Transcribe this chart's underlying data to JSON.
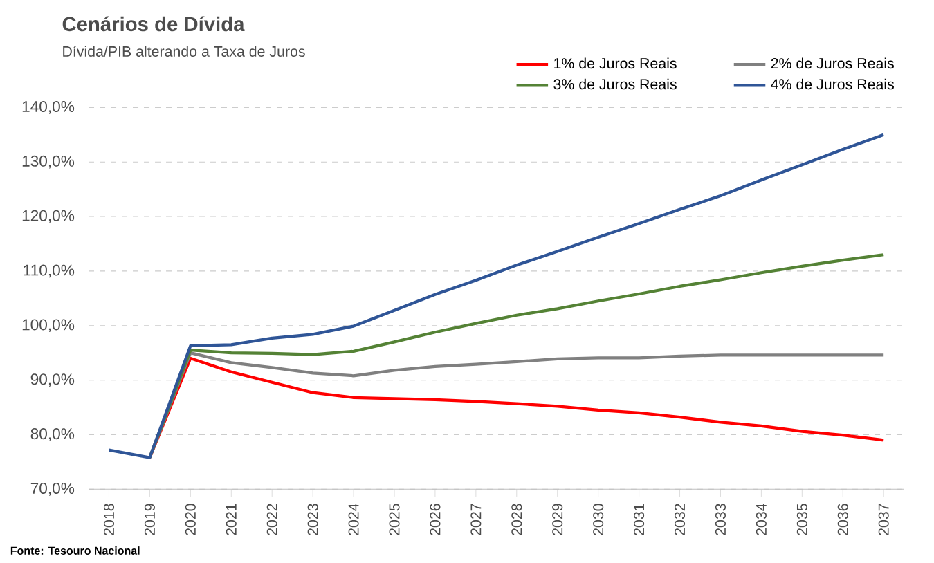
{
  "chart_data": {
    "type": "line",
    "title": "Cenários de Dívida",
    "subtitle": "Dívida/PIB alterando a Taxa de Juros",
    "categories": [
      "2018",
      "2019",
      "2020",
      "2021",
      "2022",
      "2023",
      "2024",
      "2025",
      "2026",
      "2027",
      "2028",
      "2029",
      "2030",
      "2031",
      "2032",
      "2033",
      "2034",
      "2035",
      "2036",
      "2037"
    ],
    "series": [
      {
        "name": "1% de Juros Reais",
        "color": "#ff0000",
        "values": [
          null,
          75.8,
          94.0,
          91.5,
          89.6,
          87.7,
          86.8,
          86.6,
          86.4,
          86.1,
          85.7,
          85.2,
          84.5,
          84.0,
          83.2,
          82.3,
          81.6,
          80.6,
          79.9,
          79.0
        ]
      },
      {
        "name": "2% de Juros Reais",
        "color": "#808080",
        "values": [
          null,
          75.8,
          95.0,
          93.2,
          92.3,
          91.3,
          90.8,
          91.8,
          92.5,
          92.9,
          93.4,
          93.9,
          94.1,
          94.1,
          94.4,
          94.6,
          94.6,
          94.6,
          94.6,
          94.6
        ]
      },
      {
        "name": "3% de Juros Reais",
        "color": "#548235",
        "values": [
          null,
          75.8,
          95.5,
          95.0,
          94.9,
          94.7,
          95.3,
          97.0,
          98.8,
          100.4,
          101.9,
          103.1,
          104.5,
          105.8,
          107.2,
          108.4,
          109.7,
          110.9,
          112.0,
          113.0
        ]
      },
      {
        "name": "4% de Juros Reais",
        "color": "#2f5597",
        "values": [
          77.2,
          75.8,
          96.3,
          96.5,
          97.7,
          98.4,
          99.9,
          102.8,
          105.7,
          108.3,
          111.1,
          113.6,
          116.2,
          118.7,
          121.3,
          123.8,
          126.7,
          129.5,
          132.3,
          135.0
        ]
      }
    ],
    "ylim": [
      70,
      140
    ],
    "yticks": [
      {
        "value": 70,
        "label": "70,0%"
      },
      {
        "value": 80,
        "label": "80,0%"
      },
      {
        "value": 90,
        "label": "90,0%"
      },
      {
        "value": 100,
        "label": "100,0%"
      },
      {
        "value": 110,
        "label": "110,0%"
      },
      {
        "value": 120,
        "label": "120,0%"
      },
      {
        "value": 130,
        "label": "130,0%"
      },
      {
        "value": 140,
        "label": "140,0%"
      }
    ],
    "grid": "y",
    "legend": "top right",
    "marker": "none",
    "line_style": "solid",
    "annotations": [
      "Fonte: Tesouro Nacional"
    ]
  }
}
